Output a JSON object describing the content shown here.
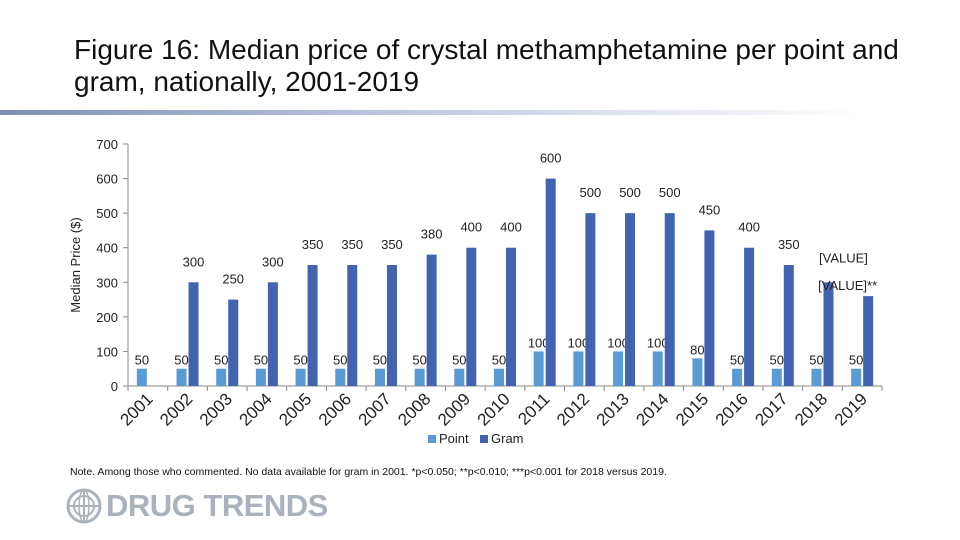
{
  "title": "Figure 16: Median price of crystal methamphetamine per point and gram, nationally, 2001-2019",
  "note": "Note. Among those who commented. No data available for gram in 2001. *p<0.050; **p<0.010; ***p<0.001 for 2018 versus 2019.",
  "logo": {
    "text": "DRUG TRENDS",
    "icon": "globe-emblem-icon"
  },
  "colors": {
    "point": "#5b9bd5",
    "gram": "#4263b0",
    "axis": "#8a8a8a"
  },
  "chart_data": {
    "type": "bar",
    "ylabel": "Median Price ($)",
    "ylim": [
      0,
      700
    ],
    "yticks": [
      0,
      100,
      200,
      300,
      400,
      500,
      600,
      700
    ],
    "legend_position": "bottom",
    "categories": [
      "2001",
      "2002",
      "2003",
      "2004",
      "2005",
      "2006",
      "2007",
      "2008",
      "2009",
      "2010",
      "2011",
      "2012",
      "2013",
      "2014",
      "2015",
      "2016",
      "2017",
      "2018",
      "2019"
    ],
    "series": [
      {
        "name": "Point",
        "values": [
          50,
          50,
          50,
          50,
          50,
          50,
          50,
          50,
          50,
          50,
          100,
          100,
          100,
          100,
          80,
          50,
          50,
          50,
          50
        ],
        "labels": [
          "50",
          "50",
          "50",
          "50",
          "50",
          "50",
          "50",
          "50",
          "50",
          "50",
          "100",
          "100",
          "100",
          "100",
          "80",
          "50",
          "50",
          "50",
          "50"
        ]
      },
      {
        "name": "Gram",
        "values": [
          null,
          300,
          250,
          300,
          350,
          350,
          350,
          380,
          400,
          400,
          600,
          500,
          500,
          500,
          450,
          400,
          350,
          300,
          260
        ],
        "labels": [
          "",
          "300",
          "250",
          "300",
          "350",
          "350",
          "350",
          "380",
          "400",
          "400",
          "600",
          "500",
          "500",
          "500",
          "450",
          "400",
          "350",
          "[VALUE]",
          "[VALUE]**"
        ]
      }
    ]
  }
}
